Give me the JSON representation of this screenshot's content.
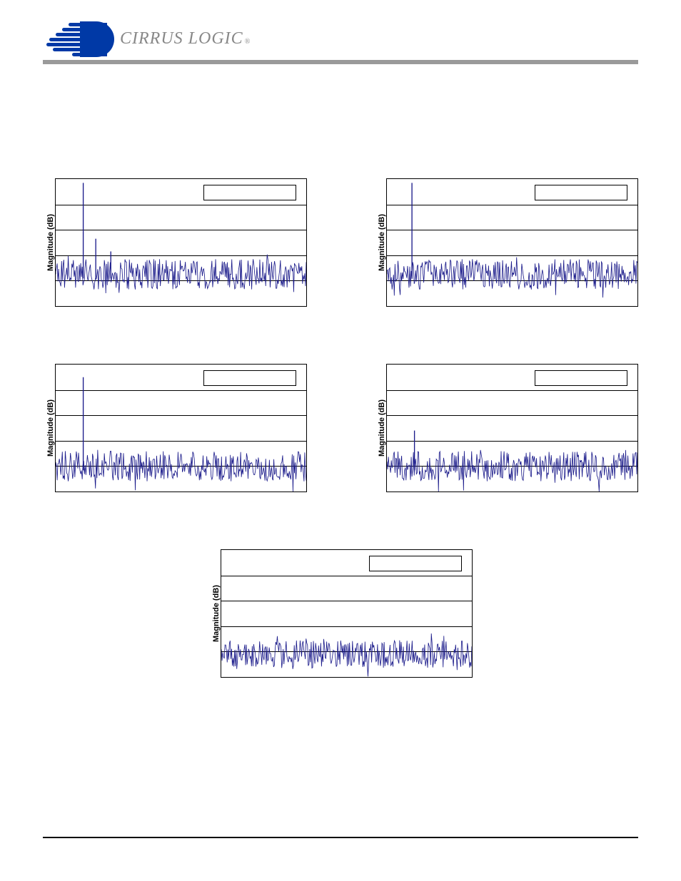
{
  "brand": "CIRRUS LOGIC",
  "charts": [
    {
      "ylabel": "Magnitude (dB)",
      "ylim": [
        -160,
        0
      ],
      "grid_y_positions": [
        0.2,
        0.4,
        0.6,
        0.8
      ],
      "legend": "",
      "noise_baseline": 0.75,
      "noise_amplitude": 0.12,
      "noise_color": "#1a1a8a",
      "peaks": [
        {
          "x": 0.11,
          "h": 0.72
        },
        {
          "x": 0.16,
          "h": 0.28
        },
        {
          "x": 0.22,
          "h": 0.18
        }
      ]
    },
    {
      "ylabel": "Magnitude (dB)",
      "ylim": [
        -160,
        0
      ],
      "grid_y_positions": [
        0.2,
        0.4,
        0.6,
        0.8
      ],
      "legend": "",
      "noise_baseline": 0.75,
      "noise_amplitude": 0.12,
      "noise_color": "#1a1a8a",
      "peaks": [
        {
          "x": 0.1,
          "h": 0.72
        }
      ]
    },
    {
      "ylabel": "Magnitude (dB)",
      "ylim": [
        -160,
        0
      ],
      "grid_y_positions": [
        0.2,
        0.4,
        0.6,
        0.8
      ],
      "legend": "",
      "noise_baseline": 0.8,
      "noise_amplitude": 0.12,
      "noise_color": "#1a1a8a",
      "peaks": [
        {
          "x": 0.11,
          "h": 0.7
        }
      ]
    },
    {
      "ylabel": "Magnitude (dB)",
      "ylim": [
        -160,
        0
      ],
      "grid_y_positions": [
        0.2,
        0.4,
        0.6,
        0.8
      ],
      "legend": "",
      "noise_baseline": 0.8,
      "noise_amplitude": 0.12,
      "noise_color": "#1a1a8a",
      "peaks": [
        {
          "x": 0.11,
          "h": 0.28
        }
      ]
    },
    {
      "ylabel": "Magnitude (dB)",
      "ylim": [
        -160,
        0
      ],
      "grid_y_positions": [
        0.2,
        0.4,
        0.6,
        0.8
      ],
      "legend": "",
      "noise_baseline": 0.82,
      "noise_amplitude": 0.11,
      "noise_color": "#1a1a8a",
      "peaks": []
    }
  ],
  "x_ticks": [
    0.125,
    0.25,
    0.375,
    0.5,
    0.625,
    0.75,
    0.875
  ]
}
